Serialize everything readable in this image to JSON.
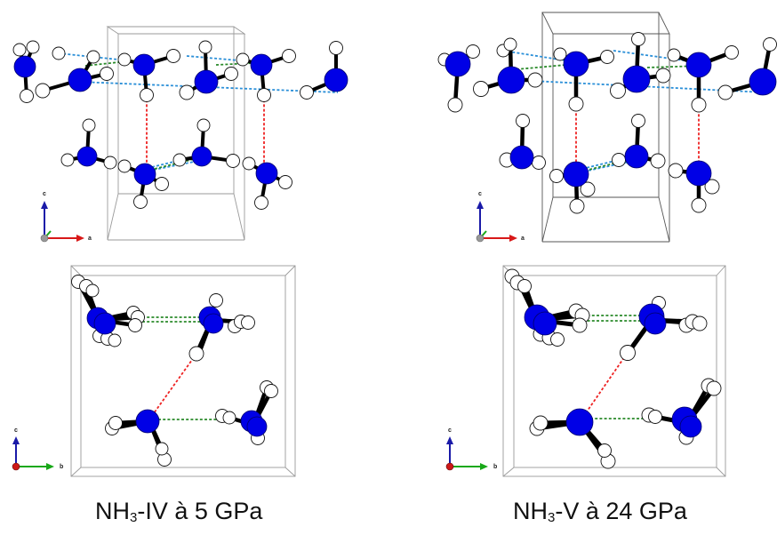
{
  "colors": {
    "nitrogen": "#0000e6",
    "hydrogen": "#ffffff",
    "bond": "#000000",
    "hbond_red": "#ee2222",
    "hbond_green": "#2a8a2a",
    "hbond_blue": "#2a8fd8",
    "cell": "#9a9a9a",
    "axis_c": "#1a1aa8",
    "axis_a": "#d81818",
    "axis_b": "#18a818"
  },
  "panels": [
    {
      "id": "IV-side",
      "axes": {
        "up": "c",
        "right": "a"
      }
    },
    {
      "id": "V-side",
      "axes": {
        "up": "c",
        "right": "a"
      }
    },
    {
      "id": "IV-top",
      "axes": {
        "up": "c",
        "right": "b"
      }
    },
    {
      "id": "V-top",
      "axes": {
        "up": "c",
        "right": "b"
      }
    }
  ],
  "captions": {
    "left": {
      "formula": "NH",
      "subscript": "3",
      "rest": "-IV à 5 GPa"
    },
    "right": {
      "formula": "NH",
      "subscript": "3",
      "rest": "-V à 24 GPa"
    }
  }
}
